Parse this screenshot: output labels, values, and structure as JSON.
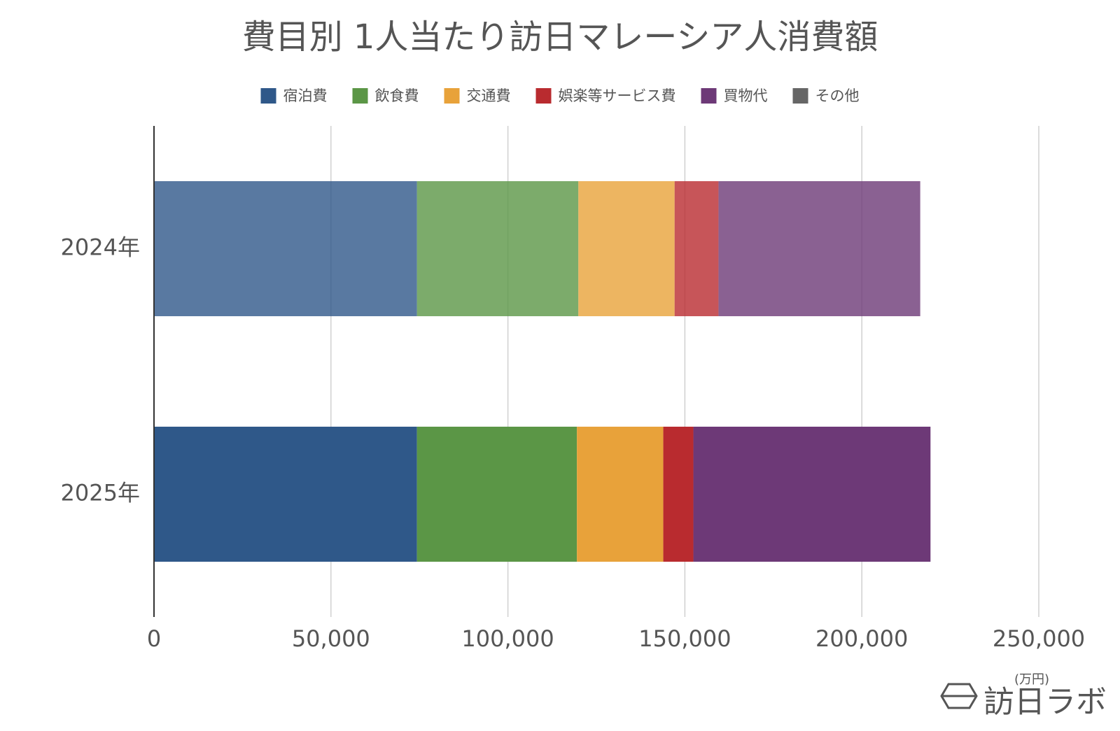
{
  "chart_data": {
    "type": "stacked_barh",
    "title": "費目別 1人当たり訪日マレーシア人消費額",
    "categories": [
      "2024年",
      "2025年"
    ],
    "series": [
      {
        "name": "宿泊費",
        "color": "#2f5889",
        "values": [
          74300,
          74300
        ]
      },
      {
        "name": "飲食費",
        "color": "#5b9646",
        "values": [
          45600,
          45200
        ]
      },
      {
        "name": "交通費",
        "color": "#e8a23a",
        "values": [
          27200,
          24400
        ]
      },
      {
        "name": "娯楽等サービス費",
        "color": "#b92b2f",
        "values": [
          12400,
          8500
        ]
      },
      {
        "name": "買物代",
        "color": "#6d3977",
        "values": [
          57000,
          67000
        ]
      },
      {
        "name": "その他",
        "color": "#666666",
        "values": [
          0,
          0
        ]
      }
    ],
    "xlim": [
      0,
      250000
    ],
    "xticks": [
      0,
      {
        "value": 50000,
        "label": "50,000"
      },
      {
        "value": 100000,
        "label": "100,000"
      },
      {
        "value": 150000,
        "label": "150,000"
      },
      {
        "value": 200000,
        "label": "200,000"
      },
      {
        "value": 250000,
        "label": "250,000"
      }
    ],
    "grid": true,
    "unit_label": "(万円)",
    "logo": "訪日ラボ"
  }
}
